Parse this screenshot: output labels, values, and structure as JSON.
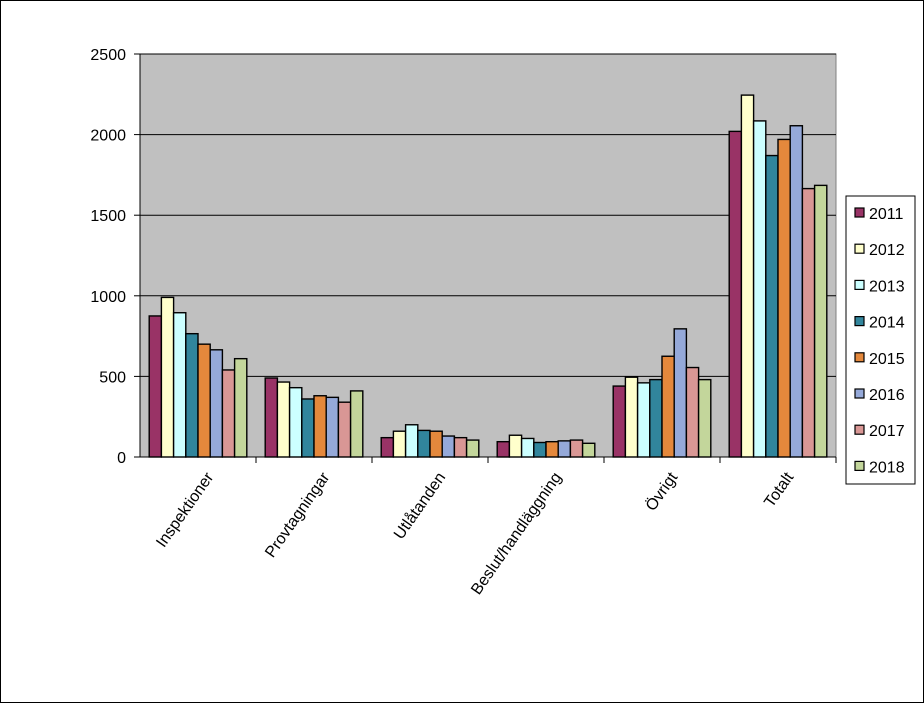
{
  "chart_data": {
    "type": "bar",
    "title": "",
    "xlabel": "",
    "ylabel": "",
    "ylim": [
      0,
      2500
    ],
    "yticks": [
      0,
      500,
      1000,
      1500,
      2000,
      2500
    ],
    "grid": "horizontal",
    "plot_background": "#c0c0c0",
    "legend_position": "right",
    "categories": [
      "Inspektioner",
      "Provtagningar",
      "Utlåtanden",
      "Beslut/handläggning",
      "Övrigt",
      "Totalt"
    ],
    "series": [
      {
        "name": "2011",
        "color": "#993366",
        "values": [
          875,
          490,
          120,
          95,
          440,
          2020
        ]
      },
      {
        "name": "2012",
        "color": "#ffffcc",
        "values": [
          990,
          465,
          160,
          135,
          495,
          2245
        ]
      },
      {
        "name": "2013",
        "color": "#ccffff",
        "values": [
          895,
          430,
          200,
          115,
          460,
          2085
        ]
      },
      {
        "name": "2014",
        "color": "#31859c",
        "values": [
          765,
          360,
          165,
          90,
          480,
          1870
        ]
      },
      {
        "name": "2015",
        "color": "#e4883c",
        "values": [
          700,
          380,
          160,
          95,
          625,
          1970
        ]
      },
      {
        "name": "2016",
        "color": "#95a9d9",
        "values": [
          665,
          370,
          130,
          100,
          795,
          2055
        ]
      },
      {
        "name": "2017",
        "color": "#d99795",
        "values": [
          540,
          340,
          120,
          105,
          555,
          1665
        ]
      },
      {
        "name": "2018",
        "color": "#c3d69b",
        "values": [
          610,
          410,
          105,
          85,
          480,
          1685
        ]
      }
    ]
  }
}
